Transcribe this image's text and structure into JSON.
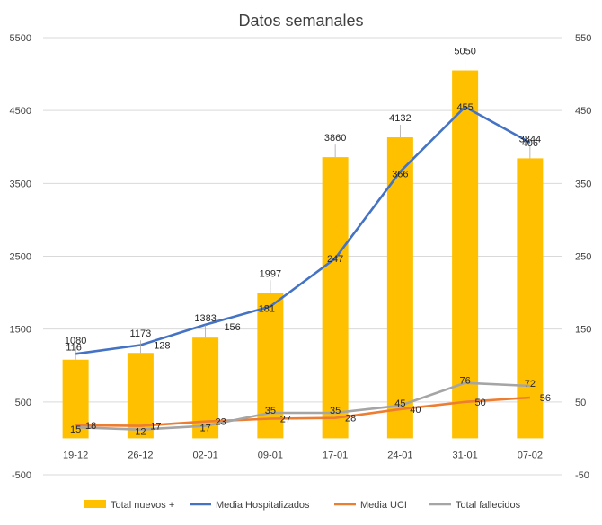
{
  "chart_data": {
    "type": "bar",
    "title": "Datos semanales",
    "categories": [
      "19-12",
      "26-12",
      "02-01",
      "09-01",
      "17-01",
      "24-01",
      "31-01",
      "07-02"
    ],
    "y_left": {
      "min": -500,
      "max": 5500,
      "ticks": [
        -500,
        500,
        1500,
        2500,
        3500,
        4500,
        5500
      ]
    },
    "y_right": {
      "min": -50,
      "max": 550,
      "ticks": [
        -50,
        50,
        150,
        250,
        350,
        450,
        550
      ]
    },
    "series": [
      {
        "name": "Total nuevos +",
        "kind": "bar",
        "axis": "left",
        "color": "#FFC000",
        "values": [
          1080,
          1173,
          1383,
          1997,
          3860,
          4132,
          5050,
          3844
        ]
      },
      {
        "name": "Media Hospitalizados",
        "kind": "line",
        "axis": "right",
        "color": "#4472C4",
        "values": [
          116,
          128,
          156,
          181,
          247,
          366,
          455,
          406
        ]
      },
      {
        "name": "Media UCI",
        "kind": "line",
        "axis": "right",
        "color": "#ED7D31",
        "values": [
          18,
          17,
          23,
          27,
          28,
          40,
          50,
          56
        ]
      },
      {
        "name": "Total fallecidos",
        "kind": "line",
        "axis": "right",
        "color": "#A5A5A5",
        "values": [
          15,
          12,
          17,
          35,
          35,
          45,
          76,
          72
        ]
      }
    ],
    "legend_position": "bottom"
  }
}
